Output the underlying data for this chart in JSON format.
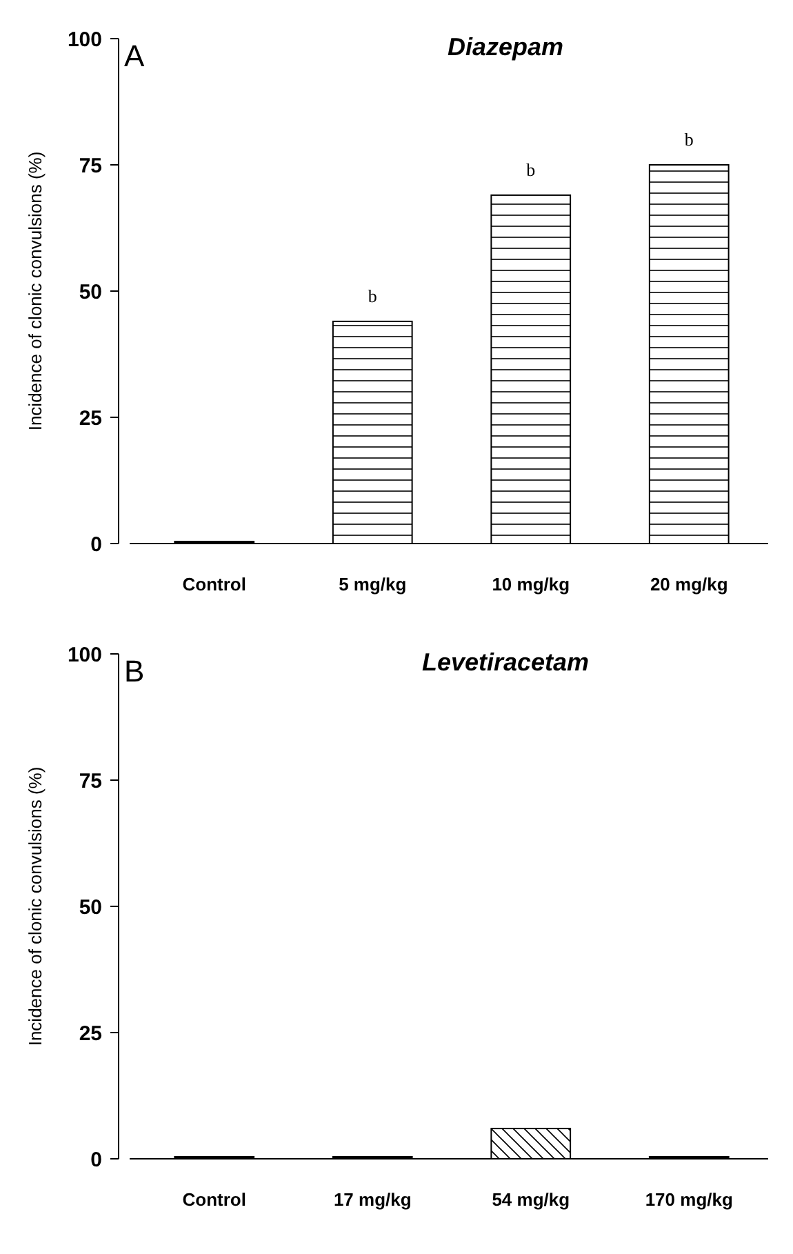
{
  "chart_data": [
    {
      "type": "bar",
      "title": "Diazepam",
      "ylabel": "Incidence of clonic convulsions (%)",
      "categories": [
        "Control",
        "5 mg/kg",
        "10 mg/kg",
        "20 mg/kg"
      ],
      "values": [
        0,
        44,
        69,
        75
      ],
      "color": "#000000",
      "ylim": [
        0,
        100
      ],
      "yticks": [
        0,
        25,
        50,
        75,
        100
      ],
      "grid": false,
      "annotations": [
        "A",
        {
          "text": "b",
          "x": "5 mg/kg",
          "y": 44
        },
        {
          "text": "b",
          "x": "10 mg/kg",
          "y": 69
        },
        {
          "text": "b",
          "x": "20 mg/kg",
          "y": 75
        }
      ]
    },
    {
      "type": "bar",
      "title": "Levetiracetam",
      "ylabel": "Incidence of clonic convulsions (%)",
      "categories": [
        "Control",
        "17 mg/kg",
        "54 mg/kg",
        "170 mg/kg"
      ],
      "values": [
        0,
        0,
        6,
        0
      ],
      "color": "#000000",
      "ylim": [
        0,
        100
      ],
      "yticks": [
        0,
        25,
        50,
        75,
        100
      ],
      "grid": false,
      "annotations": [
        "B"
      ]
    }
  ]
}
